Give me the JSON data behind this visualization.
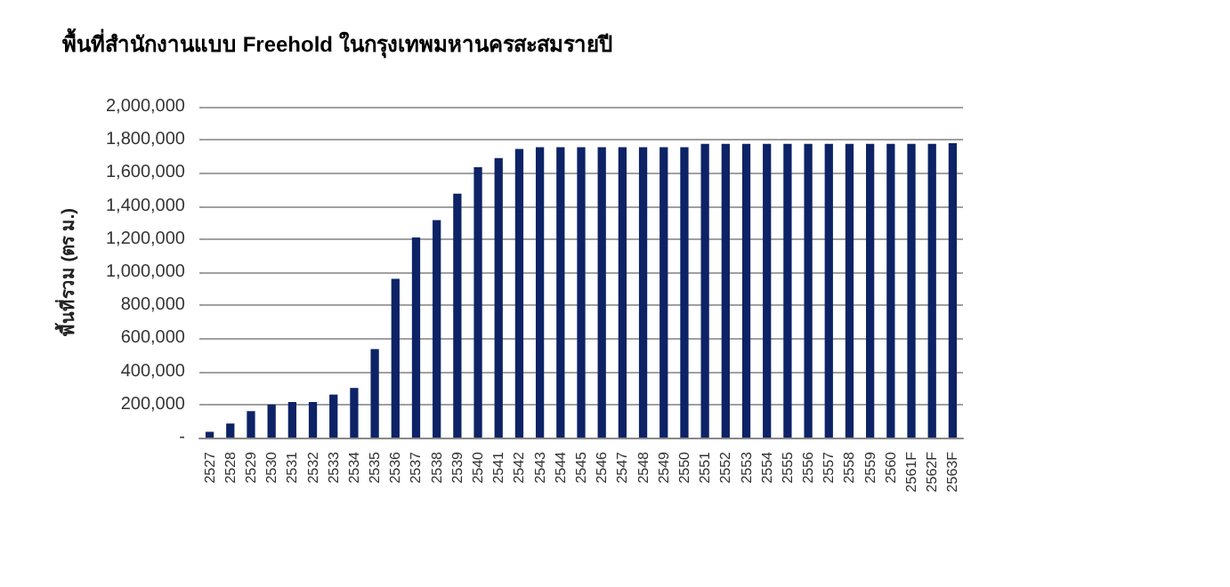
{
  "chart_data": {
    "type": "bar",
    "title": "พื้นที่สำนักงานแบบ Freehold ในกรุงเทพมหานครสะสมรายปี",
    "ylabel": "พื้นที่รวม (ตร ม.)",
    "categories": [
      "2527",
      "2528",
      "2529",
      "2530",
      "2531",
      "2532",
      "2533",
      "2534",
      "2535",
      "2536",
      "2537",
      "2538",
      "2539",
      "2540",
      "2541",
      "2542",
      "2543",
      "2544",
      "2545",
      "2546",
      "2547",
      "2548",
      "2549",
      "2550",
      "2551",
      "2552",
      "2553",
      "2554",
      "2555",
      "2556",
      "2557",
      "2558",
      "2559",
      "2560",
      "2561F",
      "2562F",
      "2563F"
    ],
    "values": [
      35000,
      85000,
      160000,
      200000,
      215000,
      215000,
      260000,
      300000,
      535000,
      960000,
      1210000,
      1315000,
      1475000,
      1635000,
      1690000,
      1745000,
      1755000,
      1755000,
      1755000,
      1755000,
      1755000,
      1755000,
      1755000,
      1755000,
      1775000,
      1775000,
      1775000,
      1775000,
      1775000,
      1775000,
      1775000,
      1775000,
      1775000,
      1775000,
      1775000,
      1775000,
      1780000
    ],
    "color": "#0d2366",
    "ylim": [
      0,
      2000000
    ],
    "yticks": [
      {
        "value": 0,
        "label": "-"
      },
      {
        "value": 200000,
        "label": "200,000"
      },
      {
        "value": 400000,
        "label": "400,000"
      },
      {
        "value": 600000,
        "label": "600,000"
      },
      {
        "value": 800000,
        "label": "800,000"
      },
      {
        "value": 1000000,
        "label": "1,000,000"
      },
      {
        "value": 1200000,
        "label": "1,200,000"
      },
      {
        "value": 1400000,
        "label": "1,400,000"
      },
      {
        "value": 1600000,
        "label": "1,600,000"
      },
      {
        "value": 1800000,
        "label": "1,800,000"
      },
      {
        "value": 2000000,
        "label": "2,000,000"
      }
    ],
    "grid": "y"
  }
}
